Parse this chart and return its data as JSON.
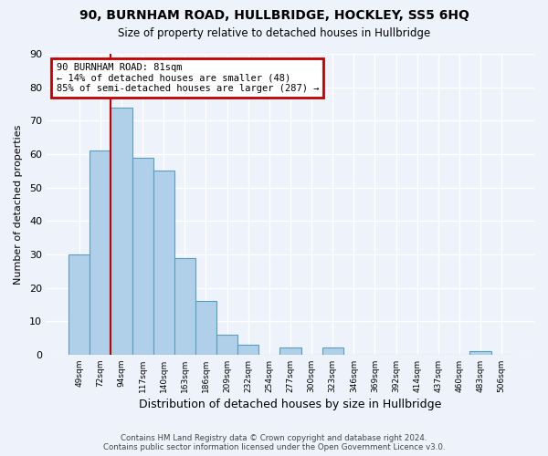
{
  "title": "90, BURNHAM ROAD, HULLBRIDGE, HOCKLEY, SS5 6HQ",
  "subtitle": "Size of property relative to detached houses in Hullbridge",
  "xlabel": "Distribution of detached houses by size in Hullbridge",
  "ylabel": "Number of detached properties",
  "bar_labels": [
    "49sqm",
    "72sqm",
    "94sqm",
    "117sqm",
    "140sqm",
    "163sqm",
    "186sqm",
    "209sqm",
    "232sqm",
    "254sqm",
    "277sqm",
    "300sqm",
    "323sqm",
    "346sqm",
    "369sqm",
    "392sqm",
    "414sqm",
    "437sqm",
    "460sqm",
    "483sqm",
    "506sqm"
  ],
  "bar_values": [
    30,
    61,
    74,
    59,
    55,
    29,
    16,
    6,
    3,
    0,
    2,
    0,
    2,
    0,
    0,
    0,
    0,
    0,
    0,
    1,
    0
  ],
  "bar_color": "#afd0e8",
  "bar_edge_color": "#5b9cc4",
  "ylim": [
    0,
    90
  ],
  "yticks": [
    0,
    10,
    20,
    30,
    40,
    50,
    60,
    70,
    80,
    90
  ],
  "vline_x": 1.5,
  "vline_color": "#c00000",
  "annotation_title": "90 BURNHAM ROAD: 81sqm",
  "annotation_line1": "← 14% of detached houses are smaller (48)",
  "annotation_line2": "85% of semi-detached houses are larger (287) →",
  "annotation_box_color": "#c00000",
  "footer_line1": "Contains HM Land Registry data © Crown copyright and database right 2024.",
  "footer_line2": "Contains public sector information licensed under the Open Government Licence v3.0.",
  "background_color": "#eef2fa",
  "grid_color": "#ffffff"
}
